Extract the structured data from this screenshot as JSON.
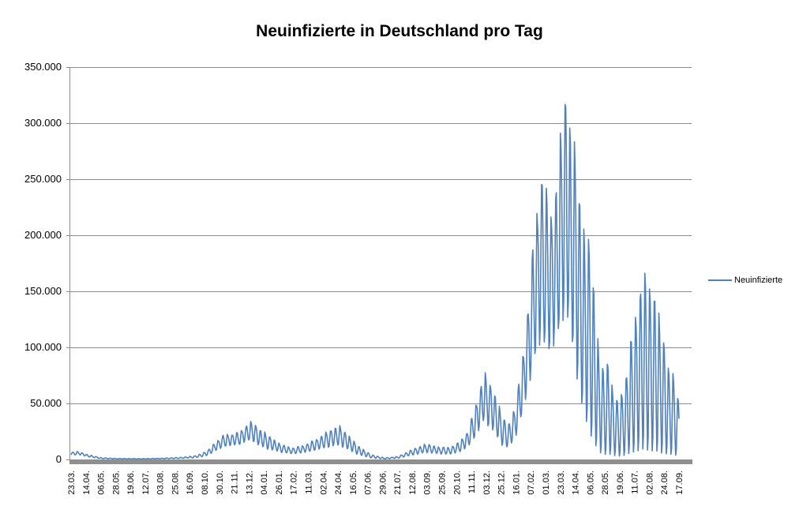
{
  "colors": {
    "series": "#4F81BD",
    "gridline": "#8C8C8C",
    "axis_line": "#8C8C8C",
    "axis_bar": "#8F8F8F",
    "text": "#000000",
    "background": "#FFFFFF"
  },
  "chart_data": {
    "type": "line",
    "title": "Neuinfizierte in Deutschland pro Tag",
    "grid": "horizontal-only",
    "legend": {
      "position": "right",
      "entries": [
        {
          "label": "Neuinfizierte",
          "color": "#4F81BD"
        }
      ]
    },
    "y_axis": {
      "min": 0,
      "max": 350000,
      "tick_step": 50000,
      "tick_labels": [
        "0",
        "50.000",
        "100.000",
        "150.000",
        "200.000",
        "250.000",
        "300.000",
        "350.000"
      ]
    },
    "x_axis": {
      "label_rotation_deg": 90,
      "tick_labels": [
        "23.03.",
        "14.04.",
        "06.05.",
        "28.05.",
        "19.06.",
        "12.07.",
        "03.08.",
        "25.08.",
        "16.09.",
        "08.10.",
        "30.10.",
        "21.11.",
        "13.12.",
        "04.01.",
        "26.01.",
        "17.02.",
        "11.03.",
        "02.04.",
        "24.04.",
        "16.05.",
        "07.06.",
        "29.06.",
        "21.07.",
        "12.08.",
        "03.09.",
        "25.09.",
        "20.10.",
        "11.11.",
        "03.12.",
        "25.12.",
        "16.01.",
        "07.02.",
        "01.03.",
        "23.03.",
        "14.04.",
        "06.05.",
        "28.05.",
        "19.06.",
        "11.07.",
        "02.08.",
        "24.08.",
        "17.09."
      ]
    },
    "series": [
      {
        "name": "Neuinfizierte",
        "color": "#4F81BD",
        "key_points": {
          "first_wave_peak_apr2020": 6900,
          "winter_wave_peak_dec2020": 33200,
          "third_wave_peak_apr2021": 29500,
          "delta_wave_peak_nov2021": 76000,
          "omicron_shoulder_feb2022": 248000,
          "omicron_max_mar2022": 318000,
          "summer_wave_peak_jul2022": 162000,
          "last_value_sep2022": 36000
        },
        "points_model": {
          "n_days": 908,
          "first_point_weekday": "Monday",
          "weekly_shape_sun_to_sat": [
            0.02,
            0.1,
            0.55,
            1.0,
            0.95,
            0.7,
            0.3
          ],
          "envelope_keyframes_day_upper_lower": [
            [
              0,
              6500,
              3800
            ],
            [
              12,
              6900,
              4300
            ],
            [
              25,
              4200,
              2400
            ],
            [
              45,
              1500,
              750
            ],
            [
              70,
              900,
              420
            ],
            [
              105,
              700,
              350
            ],
            [
              135,
              1100,
              550
            ],
            [
              165,
              1900,
              950
            ],
            [
              185,
              3200,
              1500
            ],
            [
              195,
              5200,
              2400
            ],
            [
              205,
              8500,
              4000
            ],
            [
              215,
              15000,
              7500
            ],
            [
              228,
              21500,
              11500
            ],
            [
              240,
              22500,
              12500
            ],
            [
              252,
              24000,
              13500
            ],
            [
              262,
              30500,
              16500
            ],
            [
              270,
              33200,
              17000
            ],
            [
              282,
              26500,
              11500
            ],
            [
              295,
              21000,
              9000
            ],
            [
              312,
              13500,
              6500
            ],
            [
              330,
              10000,
              5000
            ],
            [
              348,
              12500,
              6200
            ],
            [
              368,
              18500,
              8800
            ],
            [
              388,
              26500,
              11500
            ],
            [
              400,
              29500,
              12500
            ],
            [
              412,
              22500,
              9000
            ],
            [
              428,
              12000,
              4200
            ],
            [
              448,
              4200,
              1300
            ],
            [
              468,
              1400,
              450
            ],
            [
              488,
              2600,
              1100
            ],
            [
              508,
              8500,
              3800
            ],
            [
              530,
              13800,
              6200
            ],
            [
              548,
              11000,
              5000
            ],
            [
              565,
              10500,
              4600
            ],
            [
              580,
              15500,
              6800
            ],
            [
              592,
              25000,
              11000
            ],
            [
              604,
              48000,
              21000
            ],
            [
              616,
              76000,
              34000
            ],
            [
              630,
              62000,
              25000
            ],
            [
              642,
              40000,
              13000
            ],
            [
              652,
              30000,
              10000
            ],
            [
              662,
              45000,
              18000
            ],
            [
              672,
              80000,
              38000
            ],
            [
              682,
              135000,
              62000
            ],
            [
              692,
              205000,
              90000
            ],
            [
              702,
              252000,
              105000
            ],
            [
              710,
              230000,
              98000
            ],
            [
              718,
              218000,
              95000
            ],
            [
              726,
              248000,
              110000
            ],
            [
              737,
              330000,
              130000
            ],
            [
              747,
              280000,
              105000
            ],
            [
              754,
              270000,
              75000
            ],
            [
              762,
              205000,
              45000
            ],
            [
              772,
              195000,
              25000
            ],
            [
              780,
              150000,
              12000
            ],
            [
              788,
              92000,
              5000
            ],
            [
              795,
              78000,
              3000
            ],
            [
              802,
              86000,
              3000
            ],
            [
              810,
              56000,
              2500
            ],
            [
              818,
              50000,
              2000
            ],
            [
              826,
              66000,
              2500
            ],
            [
              835,
              104000,
              4000
            ],
            [
              843,
              126000,
              5000
            ],
            [
              850,
              155000,
              6000
            ],
            [
              857,
              162000,
              6000
            ],
            [
              864,
              149000,
              5000
            ],
            [
              871,
              146000,
              5000
            ],
            [
              878,
              123000,
              4000
            ],
            [
              885,
              102000,
              3500
            ],
            [
              892,
              79000,
              3000
            ],
            [
              899,
              75000,
              3000
            ],
            [
              905,
              55000,
              2500
            ],
            [
              907,
              50000,
              2500
            ]
          ]
        }
      }
    ]
  }
}
